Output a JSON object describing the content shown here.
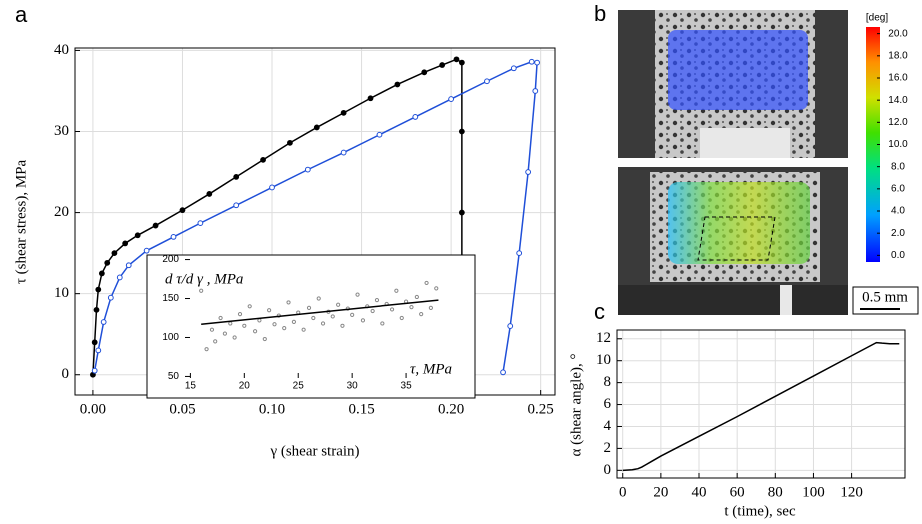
{
  "chart_data": [
    {
      "type": "line",
      "label": "a",
      "x_label": "γ (shear strain)",
      "y_label": "τ (shear stress), MPa",
      "xlim": [
        -0.01,
        0.258
      ],
      "ylim": [
        -2.5,
        40.3
      ],
      "xticks": [
        {
          "value": 0,
          "label": "0.00"
        },
        0.05,
        {
          "value": 0.1,
          "label": "0.10"
        },
        0.15,
        {
          "value": 0.2,
          "label": "0.20"
        },
        0.25
      ],
      "yticks": [
        0,
        10,
        20,
        30,
        40
      ],
      "grid": true,
      "series": [
        {
          "color": "#000000",
          "marker": "filled",
          "x": [
            0,
            0.001,
            0.002,
            0.003,
            0.005,
            0.008,
            0.012,
            0.018,
            0.025,
            0.035,
            0.05,
            0.065,
            0.08,
            0.095,
            0.11,
            0.125,
            0.14,
            0.155,
            0.17,
            0.185,
            0.195,
            0.203,
            0.206,
            0.206,
            0.206,
            0.206,
            0.206
          ],
          "values": [
            0,
            4,
            8,
            10.5,
            12.5,
            13.8,
            15,
            16.2,
            17.2,
            18.4,
            20.3,
            22.3,
            24.4,
            26.5,
            28.6,
            30.5,
            32.3,
            34.1,
            35.8,
            37.3,
            38.2,
            38.9,
            38.5,
            30,
            20,
            10,
            0
          ]
        },
        {
          "color": "#1f4fd8",
          "marker": "open",
          "x": [
            0.001,
            0.003,
            0.006,
            0.01,
            0.015,
            0.02,
            0.03,
            0.045,
            0.06,
            0.08,
            0.1,
            0.12,
            0.14,
            0.16,
            0.18,
            0.2,
            0.22,
            0.235,
            0.245,
            0.248,
            0.247,
            0.243,
            0.238,
            0.233,
            0.229
          ],
          "values": [
            0.5,
            3,
            6.5,
            9.5,
            12,
            13.5,
            15.3,
            17,
            18.7,
            20.9,
            23.1,
            25.3,
            27.4,
            29.6,
            31.8,
            34,
            36.2,
            37.8,
            38.6,
            38.5,
            35,
            25,
            15,
            6,
            0.3
          ]
        }
      ]
    },
    {
      "type": "scatter",
      "x_label": "τ, MPa",
      "y_label": "d τ/d γ , MPa",
      "xlim": [
        14.5,
        40
      ],
      "ylim": [
        48,
        202
      ],
      "xticks": [
        15,
        20,
        25,
        30,
        35
      ],
      "yticks": [
        50,
        100,
        150,
        200
      ],
      "grid": false,
      "series": [
        {
          "color": "#888888",
          "marker": "open",
          "x": [
            16,
            16.5,
            17,
            17.3,
            17.8,
            18.2,
            18.7,
            19.1,
            19.6,
            20,
            20.5,
            21,
            21.4,
            21.9,
            22.3,
            22.8,
            23.2,
            23.7,
            24.1,
            24.6,
            25,
            25.5,
            26,
            26.4,
            26.9,
            27.3,
            27.8,
            28.2,
            28.7,
            29.1,
            29.6,
            30,
            30.5,
            31,
            31.4,
            31.9,
            32.3,
            32.8,
            33.2,
            33.7,
            34.1,
            34.6,
            35,
            35.5,
            36,
            36.4,
            36.9,
            37.3,
            37.8
          ],
          "values": [
            160,
            85,
            110,
            95,
            125,
            105,
            118,
            100,
            130,
            115,
            140,
            108,
            122,
            98,
            135,
            117,
            128,
            112,
            145,
            120,
            132,
            110,
            138,
            125,
            150,
            118,
            133,
            127,
            142,
            115,
            137,
            129,
            155,
            122,
            140,
            134,
            148,
            118,
            143,
            136,
            160,
            125,
            146,
            139,
            152,
            130,
            170,
            138,
            163
          ]
        },
        {
          "color": "#000000",
          "marker": "none",
          "x": [
            16,
            38
          ],
          "values": [
            117,
            148
          ]
        }
      ]
    },
    {
      "type": "colorbar",
      "label": "b",
      "title": "[deg]",
      "scale_bar": "0.5 mm",
      "ylim": [
        -0.6,
        20.6
      ],
      "yticks": [
        {
          "value": 0,
          "label": "0.0"
        },
        {
          "value": 2,
          "label": "2.0"
        },
        {
          "value": 4,
          "label": "4.0"
        },
        {
          "value": 6,
          "label": "6.0"
        },
        {
          "value": 8,
          "label": "8.0"
        },
        {
          "value": 10,
          "label": "10.0"
        },
        {
          "value": 12,
          "label": "12.0"
        },
        {
          "value": 14,
          "label": "14.0"
        },
        {
          "value": 16,
          "label": "16.0"
        },
        {
          "value": 18,
          "label": "18.0"
        },
        {
          "value": 20,
          "label": "20.0"
        }
      ]
    },
    {
      "type": "line",
      "label": "c",
      "x_label": "t (time), sec",
      "y_label": "α (shear angle), °",
      "xlim": [
        -3,
        148
      ],
      "ylim": [
        -0.7,
        12.8
      ],
      "xticks": [
        0,
        20,
        40,
        60,
        80,
        100,
        120
      ],
      "yticks": [
        0,
        2,
        4,
        6,
        8,
        10,
        12
      ],
      "grid": true,
      "series": [
        {
          "color": "#000000",
          "marker": "none",
          "x": [
            0,
            5,
            8,
            10,
            12,
            15,
            20,
            40,
            60,
            80,
            100,
            120,
            133,
            136,
            140,
            145
          ],
          "values": [
            0,
            0.05,
            0.15,
            0.3,
            0.5,
            0.8,
            1.3,
            3.1,
            4.9,
            6.75,
            8.6,
            10.45,
            11.65,
            11.6,
            11.55,
            11.55
          ]
        }
      ]
    }
  ]
}
